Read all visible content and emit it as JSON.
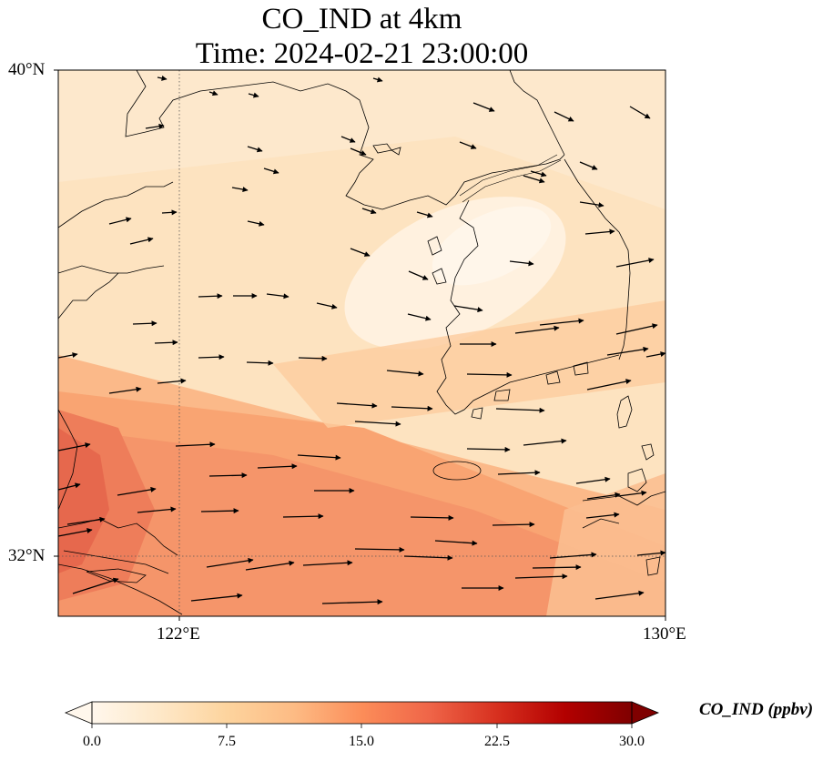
{
  "title_line1": "CO_IND at 4km",
  "title_line2": "Time: 2024-02-21 23:00:00",
  "map": {
    "lat_range": [
      31,
      40
    ],
    "lon_range": [
      120,
      130
    ],
    "lat_ticks": [
      "40°N",
      "32°N"
    ],
    "lon_ticks": [
      "122°E",
      "130°E"
    ],
    "gridlines_dotted": true
  },
  "colorbar": {
    "label": "CO_IND (ppbv)",
    "min": 0,
    "max": 30,
    "ticks": [
      "0.0",
      "7.5",
      "15.0",
      "22.5",
      "30.0"
    ],
    "colormap": "OrRd",
    "extend": "both",
    "colors": [
      "#fff7ec",
      "#fee8c8",
      "#fdd49e",
      "#fdbb84",
      "#fc8d59",
      "#ef6548",
      "#d7301f",
      "#b30000",
      "#7f0000"
    ]
  },
  "colors": {
    "coastline": "#000000",
    "arrow": "#000000",
    "gridline": "#555555"
  }
}
